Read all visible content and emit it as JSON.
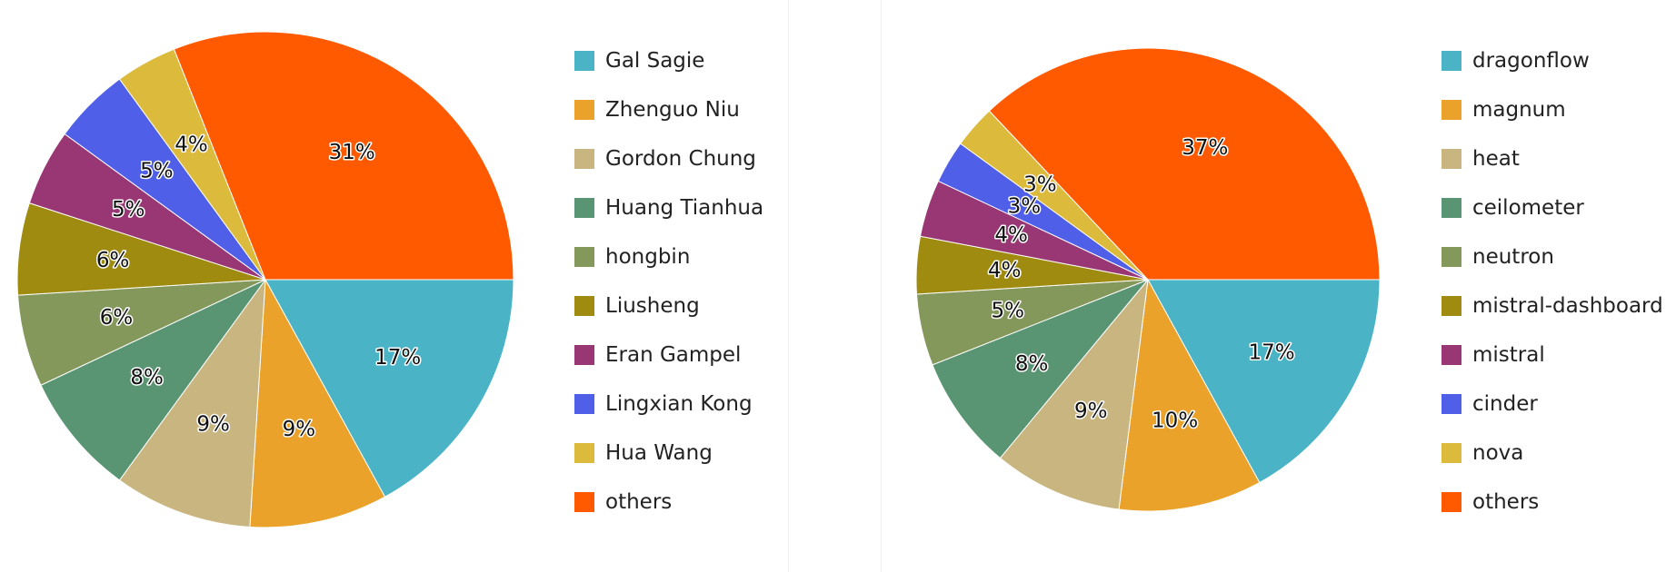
{
  "colors": [
    "#4ab3c6",
    "#eaa22a",
    "#c8b57f",
    "#5a9573",
    "#85985b",
    "#9e8b0f",
    "#993774",
    "#4f5fe8",
    "#dbba3c",
    "#ff5a00"
  ],
  "chart_data": [
    {
      "type": "pie",
      "title": "",
      "labels": [
        "Gal Sagie",
        "Zhenguo Niu",
        "Gordon Chung",
        "Huang Tianhua",
        "hongbin",
        "Liusheng",
        "Eran Gampel",
        "Lingxian Kong",
        "Hua Wang",
        "others"
      ],
      "values": [
        17,
        9,
        9,
        8,
        6,
        6,
        5,
        5,
        4,
        31
      ],
      "value_labels": [
        "17%",
        "9%",
        "9%",
        "8%",
        "6%",
        "6%",
        "5%",
        "5%",
        "4%",
        "31%"
      ],
      "legend": "right",
      "start": "3 o'clock, clockwise"
    },
    {
      "type": "pie",
      "title": "",
      "labels": [
        "dragonflow",
        "magnum",
        "heat",
        "ceilometer",
        "neutron",
        "mistral-dashboard",
        "mistral",
        "cinder",
        "nova",
        "others"
      ],
      "values": [
        17,
        10,
        9,
        8,
        5,
        4,
        4,
        3,
        3,
        37
      ],
      "value_labels": [
        "17%",
        "10%",
        "9%",
        "8%",
        "5%",
        "4%",
        "4%",
        "3%",
        "3%",
        "37%"
      ],
      "legend": "right",
      "start": "3 o'clock, clockwise"
    }
  ]
}
